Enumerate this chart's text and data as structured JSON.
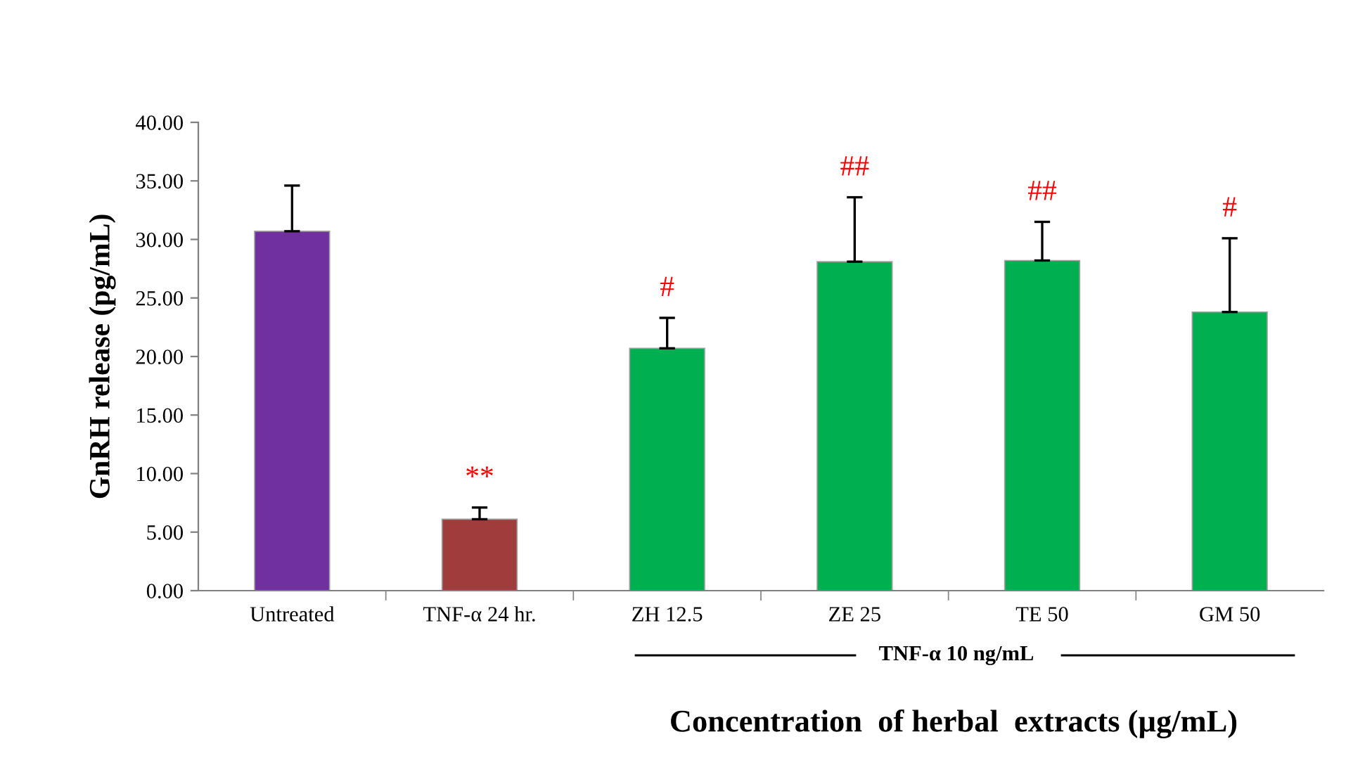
{
  "chart_data": {
    "type": "bar",
    "xlabel": "Concentration  of herbal  extracts (µg/mL)",
    "ylabel": "GnRH release (pg/mL)",
    "categories": [
      "Untreated",
      "TNF-α 24 hr.",
      "ZH 12.5",
      "ZE 25",
      "TE 50",
      "GM 50"
    ],
    "values": [
      30.7,
      6.1,
      20.7,
      28.1,
      28.2,
      23.8
    ],
    "errors": [
      [
        30.7,
        34.6
      ],
      [
        6.1,
        7.1
      ],
      [
        20.7,
        23.3
      ],
      [
        28.1,
        33.6
      ],
      [
        28.2,
        31.5
      ],
      [
        23.8,
        30.1
      ]
    ],
    "colors": [
      "#7030a0",
      "#a03c3c",
      "#00b050",
      "#00b050",
      "#00b050",
      "#00b050"
    ],
    "ylim": [
      0,
      40
    ],
    "yticks": [
      {
        "value": 0,
        "label": "0.00"
      },
      {
        "value": 5,
        "label": "5.00"
      },
      {
        "value": 10,
        "label": "10.00"
      },
      {
        "value": 15,
        "label": "15.00"
      },
      {
        "value": 20,
        "label": "20.00"
      },
      {
        "value": 25,
        "label": "25.00"
      },
      {
        "value": 30,
        "label": "30.00"
      },
      {
        "value": 35,
        "label": "35.00"
      },
      {
        "value": 40,
        "label": "40.00"
      }
    ],
    "grid": false,
    "annotations": [
      "**",
      "#",
      "##",
      "##",
      "#",
      "TNF-α 10 ng/mL"
    ]
  }
}
